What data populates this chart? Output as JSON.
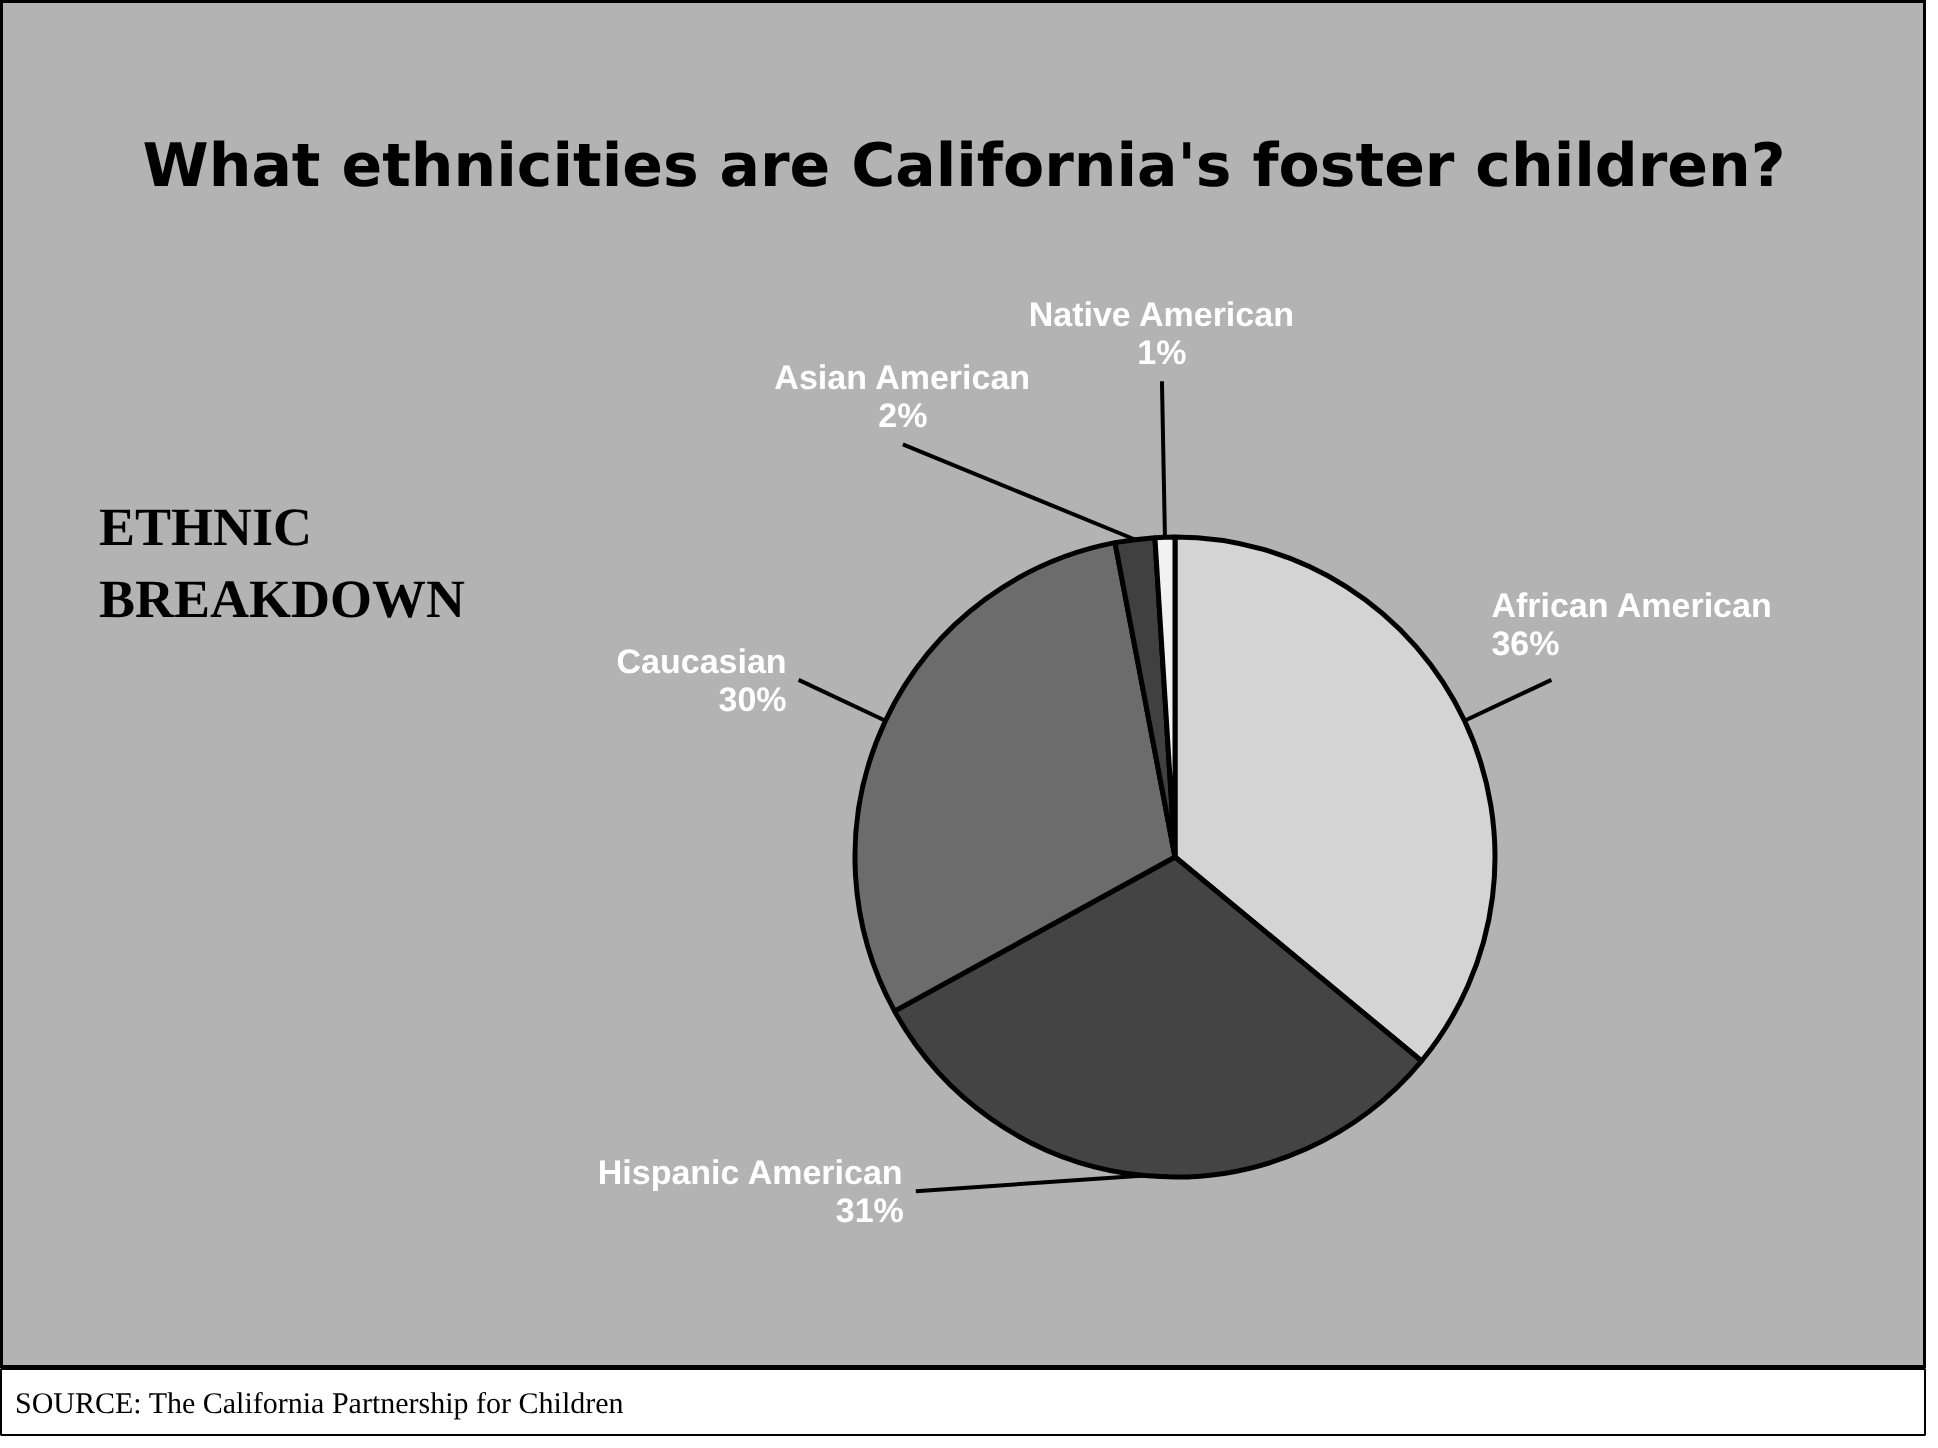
{
  "chart_data": {
    "type": "pie",
    "title": "What ethnicities are California's foster children?",
    "subtitle": "ETHNIC BREAKDOWN",
    "categories": [
      "African American",
      "Hispanic American",
      "Caucasian",
      "Asian American",
      "Native American"
    ],
    "values": [
      36,
      31,
      30,
      2,
      1
    ],
    "value_labels": [
      "36%",
      "31%",
      "30%",
      "2%",
      "1%"
    ],
    "colors": [
      "#d4d4d4",
      "#444444",
      "#6c6c6c",
      "#404040",
      "#f2f2f2"
    ],
    "annotations": [
      "SOURCE: The California Partnership for Children"
    ]
  }
}
